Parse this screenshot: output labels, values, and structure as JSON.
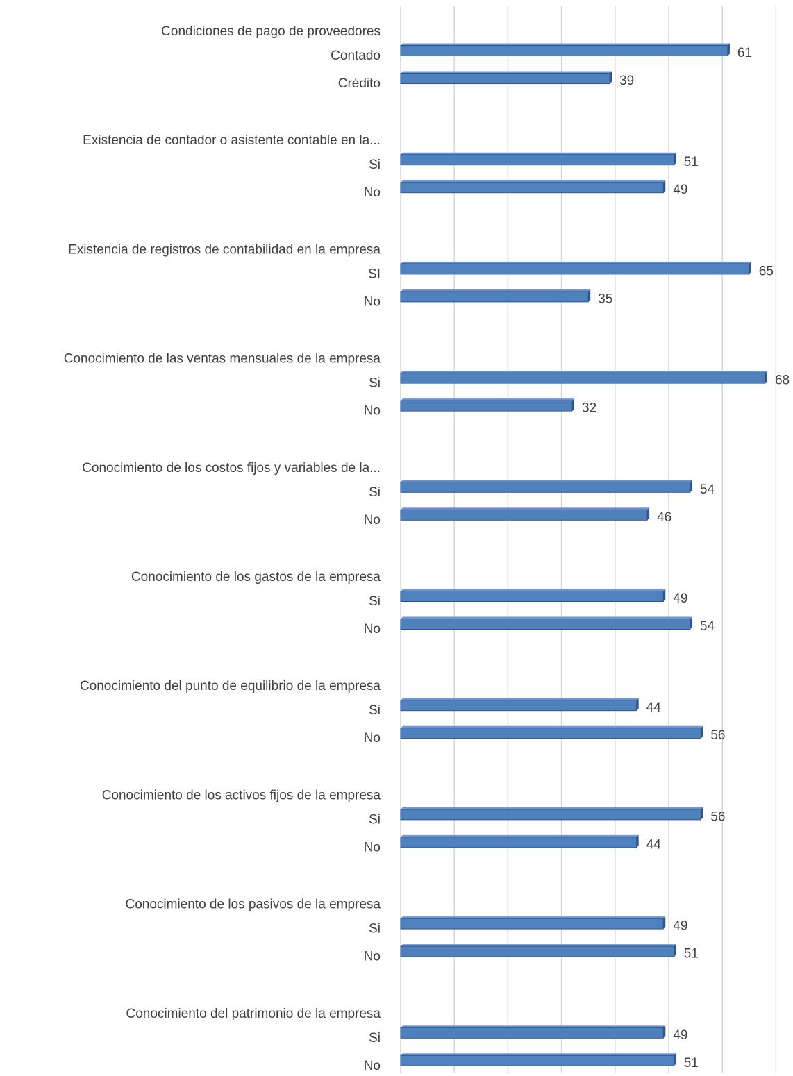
{
  "chart_data": {
    "type": "bar",
    "orientation": "horizontal",
    "grid": true,
    "xlim": [
      0,
      70
    ],
    "bar_color": "#4F81BD",
    "bar_edge_color": "#2F5597",
    "groups": [
      {
        "title": "Condiciones  de pago de proveedores",
        "items": [
          {
            "label": "Contado",
            "value": 61
          },
          {
            "label": "Crédito",
            "value": 39
          }
        ]
      },
      {
        "title": "Existencia  de contador  o asistente  contable  en la...",
        "items": [
          {
            "label": "Si",
            "value": 51
          },
          {
            "label": "No",
            "value": 49
          }
        ]
      },
      {
        "title": "Existencia  de registros  de contabilidad  en la empresa",
        "items": [
          {
            "label": "SI",
            "value": 65
          },
          {
            "label": "No",
            "value": 35
          }
        ]
      },
      {
        "title": "Conocimiento  de las ventas mensuales de la empresa",
        "items": [
          {
            "label": "Si",
            "value": 68
          },
          {
            "label": "No",
            "value": 32
          }
        ]
      },
      {
        "title": "Conocimiento  de los costos  fijos  y variables  de la...",
        "items": [
          {
            "label": "Si",
            "value": 54
          },
          {
            "label": "No",
            "value": 46
          }
        ]
      },
      {
        "title": "Conocimiento  de los gastos de la empresa",
        "items": [
          {
            "label": "Si",
            "value": 49
          },
          {
            "label": "No",
            "value": 54
          }
        ]
      },
      {
        "title": "Conocimiento  del punto de equilibrio  de la empresa",
        "items": [
          {
            "label": "Si",
            "value": 44
          },
          {
            "label": "No",
            "value": 56
          }
        ]
      },
      {
        "title": "Conocimiento  de los activos fijos  de la empresa",
        "items": [
          {
            "label": "Si",
            "value": 56
          },
          {
            "label": "No",
            "value": 44
          }
        ]
      },
      {
        "title": "Conocimiento  de los pasivos de la empresa",
        "items": [
          {
            "label": "Si",
            "value": 49
          },
          {
            "label": "No",
            "value": 51
          }
        ]
      },
      {
        "title": "Conocimiento  del patrimonio  de la empresa",
        "items": [
          {
            "label": "Si",
            "value": 49
          },
          {
            "label": "No",
            "value": 51
          }
        ]
      }
    ]
  }
}
